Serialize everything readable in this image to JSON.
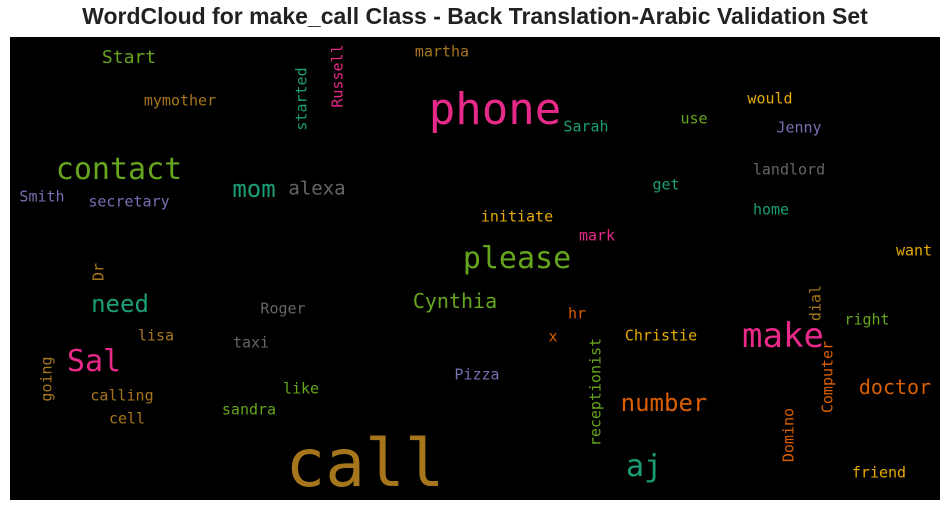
{
  "chart_data": {
    "type": "wordcloud",
    "title": "WordCloud for make_call Class - Back Translation-Arabic Validation Set",
    "background": "#000000",
    "words": [
      {
        "text": "call",
        "color": "#a6761d"
      },
      {
        "text": "phone",
        "color": "#e7298a"
      },
      {
        "text": "make",
        "color": "#e7298a"
      },
      {
        "text": "contact",
        "color": "#66a61e"
      },
      {
        "text": "please",
        "color": "#66a61e"
      },
      {
        "text": "aj",
        "color": "#1b9e77"
      },
      {
        "text": "Sal",
        "color": "#e7298a"
      },
      {
        "text": "number",
        "color": "#d95f02"
      },
      {
        "text": "mom",
        "color": "#1b9e77"
      },
      {
        "text": "need",
        "color": "#1b9e77"
      },
      {
        "text": "doctor",
        "color": "#d95f02"
      },
      {
        "text": "Cynthia",
        "color": "#66a61e"
      },
      {
        "text": "alexa",
        "color": "#666666"
      },
      {
        "text": "Start",
        "color": "#66a61e"
      },
      {
        "text": "mymother",
        "color": "#a6761d"
      },
      {
        "text": "started",
        "color": "#1b9e77"
      },
      {
        "text": "Russell",
        "color": "#e7298a"
      },
      {
        "text": "martha",
        "color": "#a6761d"
      },
      {
        "text": "Sarah",
        "color": "#1b9e77"
      },
      {
        "text": "use",
        "color": "#66a61e"
      },
      {
        "text": "would",
        "color": "#e6ab02"
      },
      {
        "text": "Jenny",
        "color": "#7570b3"
      },
      {
        "text": "landlord",
        "color": "#666666"
      },
      {
        "text": "Smith",
        "color": "#7570b3"
      },
      {
        "text": "secretary",
        "color": "#7570b3"
      },
      {
        "text": "get",
        "color": "#1b9e77"
      },
      {
        "text": "home",
        "color": "#1b9e77"
      },
      {
        "text": "initiate",
        "color": "#e6ab02"
      },
      {
        "text": "mark",
        "color": "#e7298a"
      },
      {
        "text": "want",
        "color": "#e6ab02"
      },
      {
        "text": "Dr",
        "color": "#a6761d"
      },
      {
        "text": "Roger",
        "color": "#666666"
      },
      {
        "text": "dial",
        "color": "#a6761d"
      },
      {
        "text": "right",
        "color": "#66a61e"
      },
      {
        "text": "hr",
        "color": "#d95f02"
      },
      {
        "text": "lisa",
        "color": "#a6761d"
      },
      {
        "text": "taxi",
        "color": "#666666"
      },
      {
        "text": "x",
        "color": "#d95f02"
      },
      {
        "text": "receptionist",
        "color": "#66a61e"
      },
      {
        "text": "Christie",
        "color": "#e6ab02"
      },
      {
        "text": "going",
        "color": "#a6761d"
      },
      {
        "text": "calling",
        "color": "#a6761d"
      },
      {
        "text": "like",
        "color": "#66a61e"
      },
      {
        "text": "Pizza",
        "color": "#7570b3"
      },
      {
        "text": "Computer",
        "color": "#d95f02"
      },
      {
        "text": "cell",
        "color": "#a6761d"
      },
      {
        "text": "sandra",
        "color": "#66a61e"
      },
      {
        "text": "Domino",
        "color": "#d95f02"
      },
      {
        "text": "friend",
        "color": "#e6ab02"
      }
    ]
  }
}
